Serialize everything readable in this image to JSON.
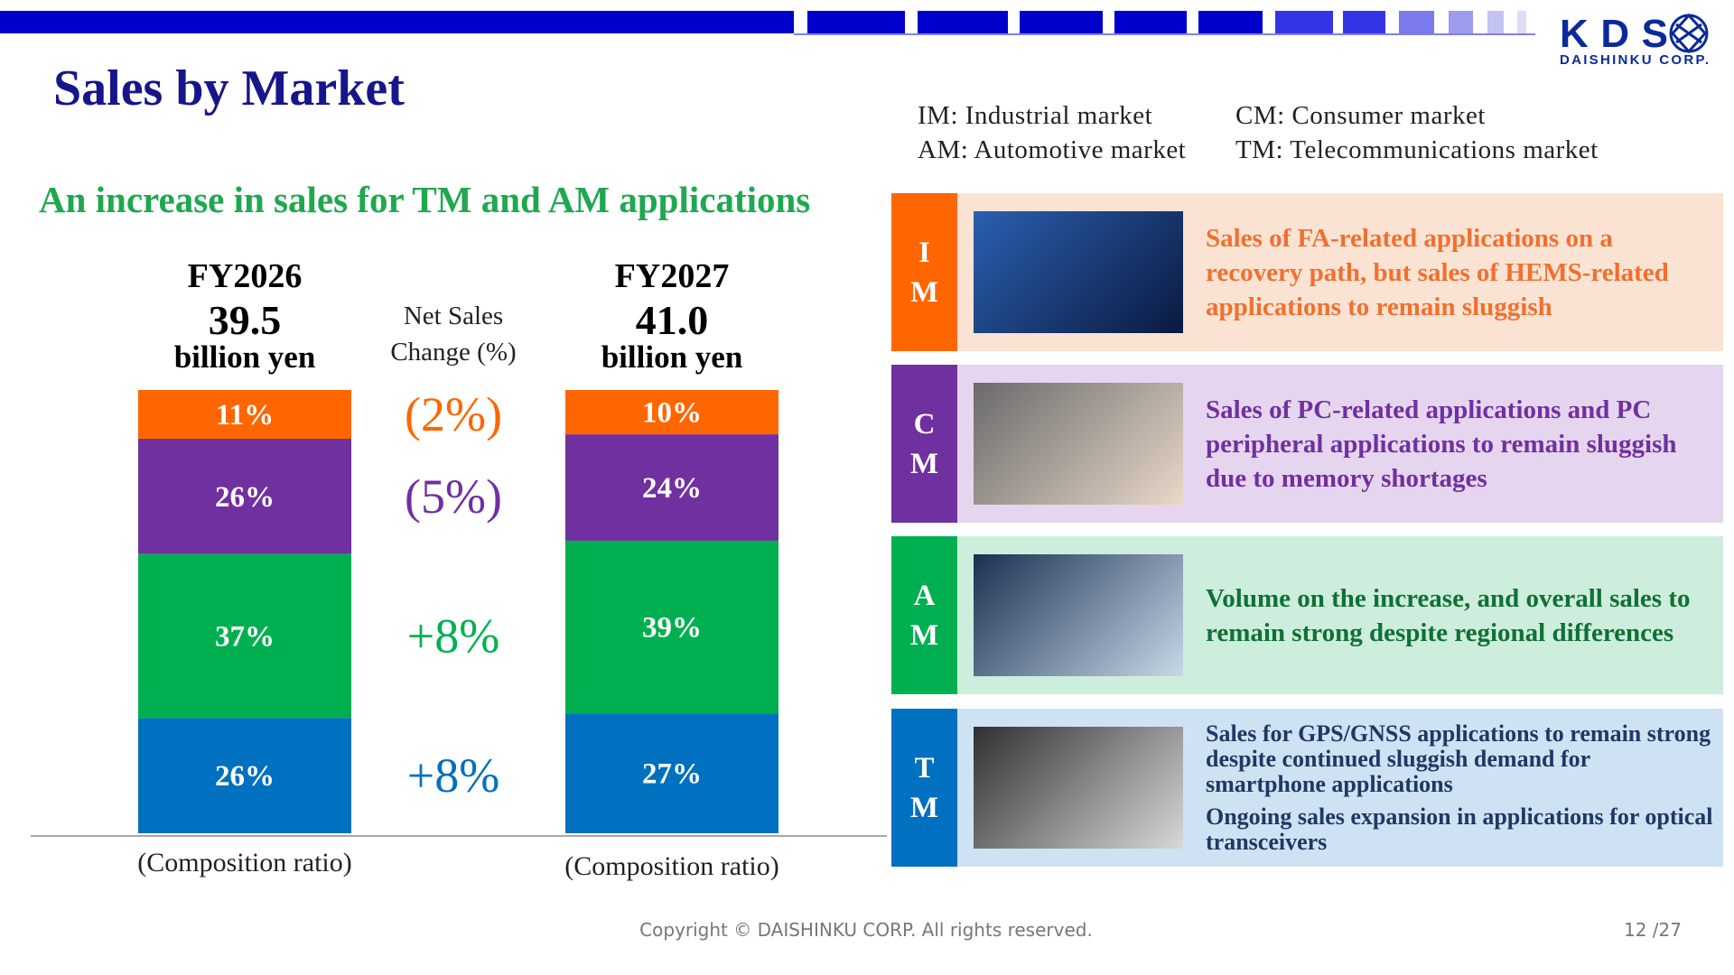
{
  "header": {
    "title": "Sales by Market",
    "logo": "KDS",
    "logo_sub": "DAISHINKU CORP."
  },
  "legend_notes": [
    "IM: Industrial market",
    "CM: Consumer market",
    "AM: Automotive market",
    "TM: Telecommunications market"
  ],
  "chart_data": {
    "type": "stacked_bar",
    "subtitle": "An increase in sales for TM and AM applications",
    "categories": [
      "FY2026",
      "FY2027"
    ],
    "totals": [
      {
        "value": 39.5,
        "label": "39.5"
      },
      {
        "value": 41,
        "label": "41.0"
      }
    ],
    "total_unit": "billion yen",
    "change_title": "Net Sales Change (%)",
    "xlabel": "(Composition ratio)",
    "ylim": [
      0,
      100
    ],
    "series": [
      {
        "color": "#0070c0",
        "values": [
          26,
          27
        ],
        "value_labels": [
          "26%",
          "27%"
        ],
        "change": {
          "value": 8,
          "label": "+8%"
        }
      },
      {
        "color": "#00b050",
        "values": [
          37,
          39
        ],
        "value_labels": [
          "37%",
          "39%"
        ],
        "change": {
          "value": 8,
          "label": "+8%"
        }
      },
      {
        "color": "#7030a0",
        "values": [
          26,
          24
        ],
        "value_labels": [
          "26%",
          "24%"
        ],
        "change": {
          "value": -5,
          "label": "(5%)"
        }
      },
      {
        "color": "#ff6600",
        "values": [
          11,
          10
        ],
        "value_labels": [
          "11%",
          "10%"
        ],
        "change": {
          "value": -2,
          "label": "(2%)"
        }
      }
    ]
  },
  "markets": [
    {
      "code": "IM",
      "color": "#ff6600",
      "bg": "#fbe3d3",
      "text_color": "#f07030",
      "texts": [
        "Sales of FA-related applications on a recovery path, but sales of HEMS-related applications to remain sluggish"
      ]
    },
    {
      "code": "CM",
      "color": "#7030a0",
      "bg": "#e6d5ee",
      "text_color": "#7030a0",
      "texts": [
        "Sales of PC-related applications and PC peripheral applications to remain sluggish due to memory shortages"
      ]
    },
    {
      "code": "AM",
      "color": "#00b050",
      "bg": "#cdeedc",
      "text_color": "#107035",
      "texts": [
        "Volume on the increase, and overall sales to remain strong despite regional differences"
      ]
    },
    {
      "code": "TM",
      "color": "#0070c0",
      "bg": "#cfe2f3",
      "text_color": "#1f3864",
      "texts": [
        "Sales for GPS/GNSS applications to remain strong despite continued sluggish demand for smartphone applications",
        "Ongoing sales expansion in applications for optical transceivers"
      ]
    }
  ],
  "footer": {
    "copyright": "Copyright © DAISHINKU CORP. All rights reserved.",
    "page": "12 /27"
  }
}
